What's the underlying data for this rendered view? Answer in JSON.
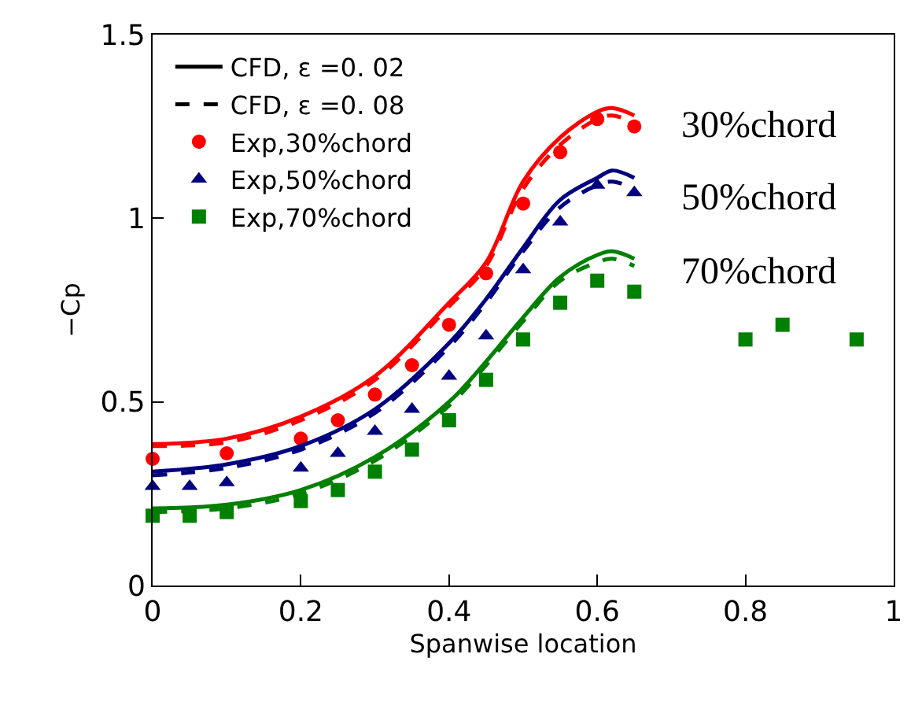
{
  "chart_data": {
    "type": "line",
    "xlabel": "Spanwise location",
    "ylabel": "−Cp",
    "xlim": [
      0,
      1
    ],
    "ylim": [
      0,
      1.5
    ],
    "xticks": [
      0,
      0.2,
      0.4,
      0.6,
      0.8,
      1
    ],
    "yticks": [
      0,
      0.5,
      1,
      1.5
    ],
    "legend": "top left",
    "series": [
      {
        "name": "CFD, ε =0. 02",
        "color": "#000000",
        "line_style": "solid",
        "marker": "none",
        "values": [
          null
        ]
      },
      {
        "name": "CFD, ε =0. 08",
        "color": "#000000",
        "line_style": "dashed",
        "marker": "none",
        "values": [
          null
        ]
      },
      {
        "name": "Exp,30%chord",
        "type": "scatter",
        "color": "#ff0000",
        "marker": "circle",
        "x": [
          0,
          0.1,
          0.2,
          0.25,
          0.3,
          0.35,
          0.4,
          0.45,
          0.5,
          0.55,
          0.6,
          0.65
        ],
        "values": [
          0.345,
          0.36,
          0.4,
          0.45,
          0.52,
          0.6,
          0.71,
          0.85,
          1.04,
          1.18,
          1.27,
          1.25
        ]
      },
      {
        "name": "Exp,50%chord",
        "type": "scatter",
        "color": "#000080",
        "marker": "triangle",
        "x": [
          0,
          0.05,
          0.1,
          0.2,
          0.25,
          0.3,
          0.35,
          0.4,
          0.45,
          0.5,
          0.55,
          0.6,
          0.65
        ],
        "values": [
          0.27,
          0.27,
          0.28,
          0.32,
          0.36,
          0.42,
          0.48,
          0.57,
          0.68,
          0.86,
          0.99,
          1.09,
          1.07
        ]
      },
      {
        "name": "Exp,70%chord",
        "type": "scatter",
        "color": "#008000",
        "marker": "square",
        "x": [
          0,
          0.05,
          0.1,
          0.2,
          0.25,
          0.3,
          0.35,
          0.4,
          0.45,
          0.5,
          0.55,
          0.6,
          0.65,
          0.8,
          0.85,
          0.95
        ],
        "values": [
          0.19,
          0.19,
          0.2,
          0.23,
          0.26,
          0.31,
          0.37,
          0.45,
          0.56,
          0.67,
          0.77,
          0.83,
          0.8,
          0.67,
          0.71,
          0.67
        ]
      },
      {
        "color": "#ff0000",
        "line_style": "solid",
        "marker": "none",
        "x": [
          0,
          0.1,
          0.2,
          0.3,
          0.4,
          0.45,
          0.5,
          0.55,
          0.6,
          0.62,
          0.65
        ],
        "values": [
          0.385,
          0.4,
          0.46,
          0.57,
          0.77,
          0.88,
          1.1,
          1.22,
          1.29,
          1.3,
          1.28
        ]
      },
      {
        "color": "#ff0000",
        "line_style": "dashed",
        "marker": "none",
        "x": [
          0,
          0.1,
          0.2,
          0.3,
          0.4,
          0.45,
          0.5,
          0.55,
          0.6,
          0.62,
          0.65
        ],
        "values": [
          0.38,
          0.39,
          0.45,
          0.56,
          0.76,
          0.87,
          1.08,
          1.2,
          1.27,
          1.28,
          1.26
        ]
      },
      {
        "color": "#000080",
        "line_style": "solid",
        "marker": "none",
        "x": [
          0,
          0.1,
          0.2,
          0.3,
          0.4,
          0.45,
          0.5,
          0.55,
          0.6,
          0.62,
          0.65
        ],
        "values": [
          0.31,
          0.33,
          0.38,
          0.48,
          0.66,
          0.78,
          0.92,
          1.05,
          1.11,
          1.13,
          1.11
        ]
      },
      {
        "color": "#000080",
        "line_style": "dashed",
        "marker": "none",
        "x": [
          0,
          0.1,
          0.2,
          0.3,
          0.4,
          0.45,
          0.5,
          0.55,
          0.6,
          0.62,
          0.65
        ],
        "values": [
          0.3,
          0.32,
          0.37,
          0.47,
          0.65,
          0.77,
          0.91,
          1.03,
          1.09,
          1.1,
          1.08
        ]
      },
      {
        "color": "#008000",
        "line_style": "solid",
        "marker": "none",
        "x": [
          0,
          0.1,
          0.2,
          0.3,
          0.4,
          0.45,
          0.5,
          0.55,
          0.6,
          0.62,
          0.65
        ],
        "values": [
          0.21,
          0.22,
          0.26,
          0.35,
          0.5,
          0.61,
          0.73,
          0.84,
          0.9,
          0.91,
          0.89
        ]
      },
      {
        "color": "#008000",
        "line_style": "dashed",
        "marker": "none",
        "x": [
          0,
          0.1,
          0.2,
          0.3,
          0.4,
          0.45,
          0.5,
          0.55,
          0.6,
          0.62,
          0.65
        ],
        "values": [
          0.2,
          0.21,
          0.25,
          0.34,
          0.49,
          0.6,
          0.72,
          0.83,
          0.88,
          0.89,
          0.87
        ]
      }
    ],
    "annotations": [
      "30%chord",
      "50%chord",
      "70%chord"
    ]
  }
}
